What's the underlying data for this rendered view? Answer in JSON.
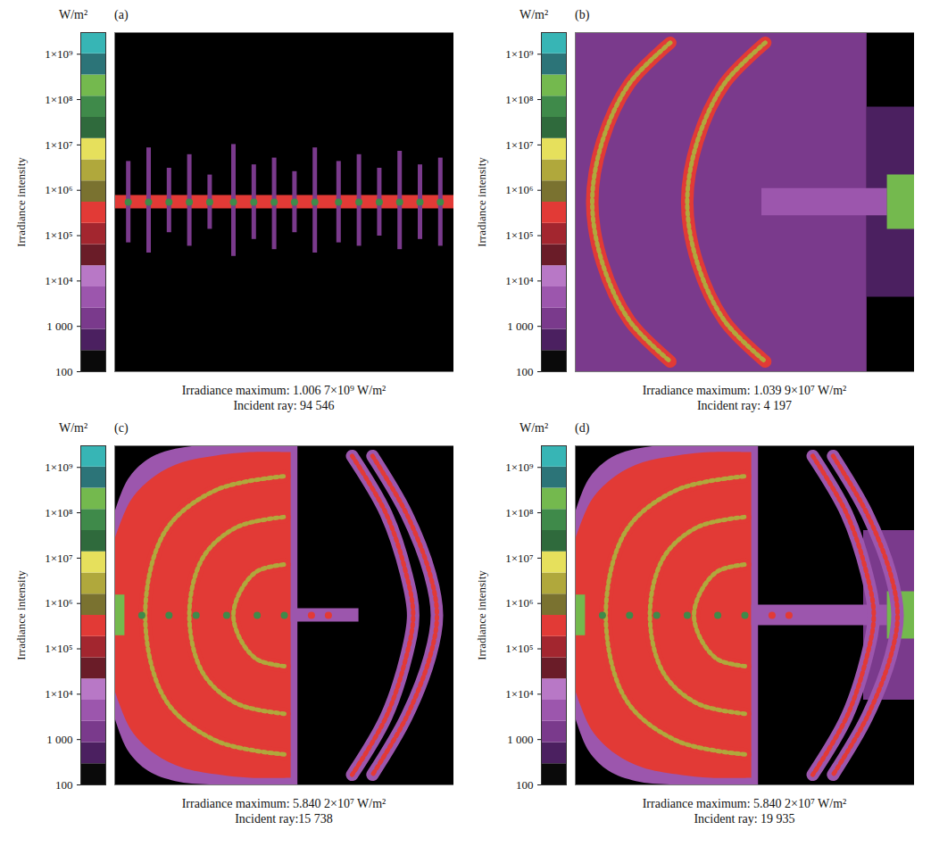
{
  "chart_data": [
    {
      "type": "heatmap",
      "label": "(a)",
      "caption": [
        "Irradiance maximum: 1.006 7×10⁹ W/m²",
        "Incident ray: 94 546"
      ],
      "xlim": [
        0,
        100
      ],
      "ylim": [
        0,
        100
      ],
      "tick_labels": false,
      "colorbar": {
        "title": "Irradiance intensity",
        "unit": "W/m²",
        "range": [
          100,
          3000000000
        ],
        "ticks": [
          100,
          {
            "value": 1000,
            "label": "1 000"
          },
          {
            "value": 10000,
            "label": "1×10⁴"
          },
          {
            "value": 100000,
            "label": "1×10⁵"
          },
          {
            "value": 1000000,
            "label": "1×10⁶"
          },
          {
            "value": 10000000,
            "label": "1×10⁷"
          },
          {
            "value": 100000000,
            "label": "1×10⁸"
          },
          {
            "value": 1000000000,
            "label": "1×10⁹"
          }
        ],
        "colors": [
          "#0a0a0a",
          "#4b2060",
          "#7a3a8c",
          "#9c56ad",
          "#b878c6",
          "#6a1c28",
          "#a3262f",
          "#e23a36",
          "#7a7230",
          "#b0a83c",
          "#e6e05c",
          "#2f6a3c",
          "#3f8a4a",
          "#74b94e",
          "#2c7478",
          "#37b5b5"
        ]
      },
      "regions": [
        {
          "x": [
            0,
            100
          ],
          "y1": [
            48,
            48
          ],
          "y2": [
            52,
            52
          ],
          "value": 300000
        }
      ],
      "streaks": {
        "x": [
          4,
          10,
          16,
          22,
          28,
          35,
          41,
          47,
          53,
          59,
          66,
          72,
          78,
          84,
          90,
          96
        ],
        "y1": [
          38,
          35,
          41,
          37,
          42,
          34,
          39,
          36,
          41,
          35,
          38,
          37,
          40,
          36,
          39,
          37
        ],
        "y2": [
          62,
          66,
          60,
          64,
          58,
          67,
          61,
          63,
          59,
          66,
          62,
          64,
          60,
          65,
          61,
          63
        ],
        "value": 2000
      },
      "spots": [
        {
          "x": [
            4,
            10,
            16,
            22,
            28,
            35,
            41,
            47,
            53,
            59,
            66,
            72,
            78,
            84,
            90,
            96
          ],
          "y": [
            50,
            50,
            50,
            50,
            50,
            50,
            50,
            50,
            50,
            50,
            50,
            50,
            50,
            50,
            50,
            50
          ],
          "value": 100000000
        }
      ]
    },
    {
      "type": "heatmap",
      "label": "(b)",
      "caption": [
        "Irradiance maximum: 1.039 9×10⁷ W/m²",
        "Incident ray: 4 197"
      ],
      "xlim": [
        0,
        100
      ],
      "ylim": [
        0,
        100
      ],
      "tick_labels": false,
      "colorbar": {
        "title": "Irradiance intensity",
        "unit": "W/m²",
        "range": [
          100,
          3000000000
        ],
        "ticks": [
          100,
          {
            "value": 1000,
            "label": "1 000"
          },
          {
            "value": 10000,
            "label": "1×10⁴"
          },
          {
            "value": 100000,
            "label": "1×10⁵"
          },
          {
            "value": 1000000,
            "label": "1×10⁶"
          },
          {
            "value": 10000000,
            "label": "1×10⁷"
          },
          {
            "value": 100000000,
            "label": "1×10⁸"
          },
          {
            "value": 1000000000,
            "label": "1×10⁹"
          }
        ],
        "colors": [
          "#0a0a0a",
          "#4b2060",
          "#7a3a8c",
          "#9c56ad",
          "#b878c6",
          "#6a1c28",
          "#a3262f",
          "#e23a36",
          "#7a7230",
          "#b0a83c",
          "#e6e05c",
          "#2f6a3c",
          "#3f8a4a",
          "#74b94e",
          "#2c7478",
          "#37b5b5"
        ]
      },
      "regions": [
        {
          "x": [
            0,
            86
          ],
          "y1": [
            0,
            0
          ],
          "y2": [
            100,
            100
          ],
          "value": 1000
        },
        {
          "x": [
            86,
            100
          ],
          "y1": [
            22,
            22
          ],
          "y2": [
            78,
            78
          ],
          "value": 600
        },
        {
          "x": [
            55,
            92
          ],
          "y1": [
            46,
            46
          ],
          "y2": [
            54,
            54
          ],
          "value": 3000
        },
        {
          "x": [
            92,
            100
          ],
          "y1": [
            42,
            42
          ],
          "y2": [
            58,
            58
          ],
          "value": 300000000
        }
      ],
      "arcs": [
        {
          "points": [
            [
              28,
              97
            ],
            [
              16,
              85
            ],
            [
              8,
              68
            ],
            [
              5,
              50
            ],
            [
              8,
              32
            ],
            [
              16,
              15
            ],
            [
              28,
              3
            ]
          ],
          "value": 300000,
          "spot_value": 3000000
        },
        {
          "points": [
            [
              56,
              97
            ],
            [
              44,
              85
            ],
            [
              36,
              68
            ],
            [
              33,
              50
            ],
            [
              36,
              32
            ],
            [
              44,
              15
            ],
            [
              56,
              3
            ]
          ],
          "value": 300000,
          "spot_value": 3000000
        }
      ]
    },
    {
      "type": "heatmap",
      "label": "(c)",
      "caption": [
        "Irradiance maximum: 5.840 2×10⁷ W/m²",
        "Incident ray:15 738"
      ],
      "xlim": [
        0,
        100
      ],
      "ylim": [
        0,
        100
      ],
      "tick_labels": false,
      "colorbar": {
        "title": "Irradiance intensity",
        "unit": "W/m²",
        "range": [
          100,
          3000000000
        ],
        "ticks": [
          100,
          {
            "value": 1000,
            "label": "1 000"
          },
          {
            "value": 10000,
            "label": "1×10⁴"
          },
          {
            "value": 100000,
            "label": "1×10⁵"
          },
          {
            "value": 1000000,
            "label": "1×10⁶"
          },
          {
            "value": 10000000,
            "label": "1×10⁷"
          },
          {
            "value": 100000000,
            "label": "1×10⁸"
          },
          {
            "value": 1000000000,
            "label": "1×10⁹"
          }
        ],
        "colors": [
          "#0a0a0a",
          "#4b2060",
          "#7a3a8c",
          "#9c56ad",
          "#b878c6",
          "#6a1c28",
          "#a3262f",
          "#e23a36",
          "#7a7230",
          "#b0a83c",
          "#e6e05c",
          "#2f6a3c",
          "#3f8a4a",
          "#74b94e",
          "#2c7478",
          "#37b5b5"
        ]
      },
      "regions": [
        {
          "x": [
            0,
            4,
            10,
            18,
            28,
            40,
            54
          ],
          "y1": [
            20,
            10,
            4,
            1,
            0,
            0,
            0
          ],
          "y2": [
            80,
            90,
            96,
            99,
            100,
            100,
            100
          ],
          "value": 3000
        },
        {
          "x": [
            0,
            5,
            12,
            20,
            30,
            40,
            52
          ],
          "y1": [
            28,
            16,
            9,
            5,
            3,
            2,
            2
          ],
          "y2": [
            72,
            84,
            91,
            95,
            97,
            98,
            98
          ],
          "value": 300000
        },
        {
          "x": [
            52,
            72
          ],
          "y1": [
            48,
            48
          ],
          "y2": [
            52,
            52
          ],
          "value": 3000
        },
        {
          "x": [
            0,
            3
          ],
          "y1": [
            44,
            44
          ],
          "y2": [
            56,
            56
          ],
          "value": 300000000
        }
      ],
      "arcs": [
        {
          "points": [
            [
              50,
              9
            ],
            [
              30,
              13
            ],
            [
              15,
              25
            ],
            [
              9,
              50
            ],
            [
              15,
              75
            ],
            [
              30,
              87
            ],
            [
              50,
              91
            ]
          ],
          "value": 300000,
          "spot_value": 3000000
        },
        {
          "points": [
            [
              50,
              21
            ],
            [
              36,
              24
            ],
            [
              26,
              33
            ],
            [
              22,
              50
            ],
            [
              26,
              67
            ],
            [
              36,
              76
            ],
            [
              50,
              79
            ]
          ],
          "value": 300000,
          "spot_value": 3000000
        },
        {
          "points": [
            [
              50,
              35
            ],
            [
              42,
              37
            ],
            [
              37,
              43
            ],
            [
              35,
              50
            ],
            [
              37,
              57
            ],
            [
              42,
              63
            ],
            [
              50,
              65
            ]
          ],
          "value": 300000,
          "spot_value": 3000000
        },
        {
          "points": [
            [
              70,
              97
            ],
            [
              80,
              80
            ],
            [
              86,
              62
            ],
            [
              88,
              50
            ],
            [
              86,
              38
            ],
            [
              80,
              20
            ],
            [
              70,
              3
            ]
          ],
          "value": 3000,
          "spot_value": 300000
        },
        {
          "points": [
            [
              76,
              97
            ],
            [
              86,
              80
            ],
            [
              93,
              62
            ],
            [
              95,
              50
            ],
            [
              93,
              38
            ],
            [
              86,
              20
            ],
            [
              76,
              3
            ]
          ],
          "value": 3000,
          "spot_value": 300000
        }
      ],
      "spots": [
        {
          "x": [
            8,
            16,
            24,
            33,
            42,
            50
          ],
          "y": [
            50,
            50,
            50,
            50,
            50,
            50
          ],
          "value": 100000000
        },
        {
          "x": [
            58,
            63
          ],
          "y": [
            50,
            50
          ],
          "value": 300000
        }
      ]
    },
    {
      "type": "heatmap",
      "label": "(d)",
      "caption": [
        "Irradiance maximum: 5.840 2×10⁷ W/m²",
        "Incident ray: 19 935"
      ],
      "xlim": [
        0,
        100
      ],
      "ylim": [
        0,
        100
      ],
      "tick_labels": false,
      "colorbar": {
        "title": "Irradiance intensity",
        "unit": "W/m²",
        "range": [
          100,
          3000000000
        ],
        "ticks": [
          100,
          {
            "value": 1000,
            "label": "1 000"
          },
          {
            "value": 10000,
            "label": "1×10⁴"
          },
          {
            "value": 100000,
            "label": "1×10⁵"
          },
          {
            "value": 1000000,
            "label": "1×10⁶"
          },
          {
            "value": 10000000,
            "label": "1×10⁷"
          },
          {
            "value": 100000000,
            "label": "1×10⁸"
          },
          {
            "value": 1000000000,
            "label": "1×10⁹"
          }
        ],
        "colors": [
          "#0a0a0a",
          "#4b2060",
          "#7a3a8c",
          "#9c56ad",
          "#b878c6",
          "#6a1c28",
          "#a3262f",
          "#e23a36",
          "#7a7230",
          "#b0a83c",
          "#e6e05c",
          "#2f6a3c",
          "#3f8a4a",
          "#74b94e",
          "#2c7478",
          "#37b5b5"
        ]
      },
      "regions": [
        {
          "x": [
            0,
            4,
            10,
            18,
            28,
            40,
            54
          ],
          "y1": [
            20,
            10,
            4,
            1,
            0,
            0,
            0
          ],
          "y2": [
            80,
            90,
            96,
            99,
            100,
            100,
            100
          ],
          "value": 3000
        },
        {
          "x": [
            0,
            5,
            12,
            20,
            30,
            40,
            52
          ],
          "y1": [
            28,
            16,
            9,
            5,
            3,
            2,
            2
          ],
          "y2": [
            72,
            84,
            91,
            95,
            97,
            98,
            98
          ],
          "value": 300000
        },
        {
          "x": [
            85,
            100
          ],
          "y1": [
            25,
            25
          ],
          "y2": [
            75,
            75
          ],
          "value": 1000
        },
        {
          "x": [
            52,
            92
          ],
          "y1": [
            47,
            47
          ],
          "y2": [
            53,
            53
          ],
          "value": 3000
        },
        {
          "x": [
            0,
            3
          ],
          "y1": [
            44,
            44
          ],
          "y2": [
            56,
            56
          ],
          "value": 300000000
        },
        {
          "x": [
            92,
            100
          ],
          "y1": [
            43,
            43
          ],
          "y2": [
            57,
            57
          ],
          "value": 300000000
        }
      ],
      "arcs": [
        {
          "points": [
            [
              50,
              9
            ],
            [
              30,
              13
            ],
            [
              15,
              25
            ],
            [
              9,
              50
            ],
            [
              15,
              75
            ],
            [
              30,
              87
            ],
            [
              50,
              91
            ]
          ],
          "value": 300000,
          "spot_value": 3000000
        },
        {
          "points": [
            [
              50,
              21
            ],
            [
              36,
              24
            ],
            [
              26,
              33
            ],
            [
              22,
              50
            ],
            [
              26,
              67
            ],
            [
              36,
              76
            ],
            [
              50,
              79
            ]
          ],
          "value": 300000,
          "spot_value": 3000000
        },
        {
          "points": [
            [
              50,
              35
            ],
            [
              42,
              37
            ],
            [
              37,
              43
            ],
            [
              35,
              50
            ],
            [
              37,
              57
            ],
            [
              42,
              63
            ],
            [
              50,
              65
            ]
          ],
          "value": 300000,
          "spot_value": 3000000
        },
        {
          "points": [
            [
              70,
              97
            ],
            [
              80,
              80
            ],
            [
              86,
              62
            ],
            [
              88,
              50
            ],
            [
              86,
              38
            ],
            [
              80,
              20
            ],
            [
              70,
              3
            ]
          ],
          "value": 3000,
          "spot_value": 300000
        },
        {
          "points": [
            [
              76,
              97
            ],
            [
              86,
              80
            ],
            [
              93,
              62
            ],
            [
              95,
              50
            ],
            [
              93,
              38
            ],
            [
              86,
              20
            ],
            [
              76,
              3
            ]
          ],
          "value": 3000,
          "spot_value": 300000
        }
      ],
      "spots": [
        {
          "x": [
            8,
            16,
            24,
            33,
            42,
            50
          ],
          "y": [
            50,
            50,
            50,
            50,
            50,
            50
          ],
          "value": 100000000
        },
        {
          "x": [
            58,
            63
          ],
          "y": [
            50,
            50
          ],
          "value": 300000
        }
      ]
    }
  ]
}
